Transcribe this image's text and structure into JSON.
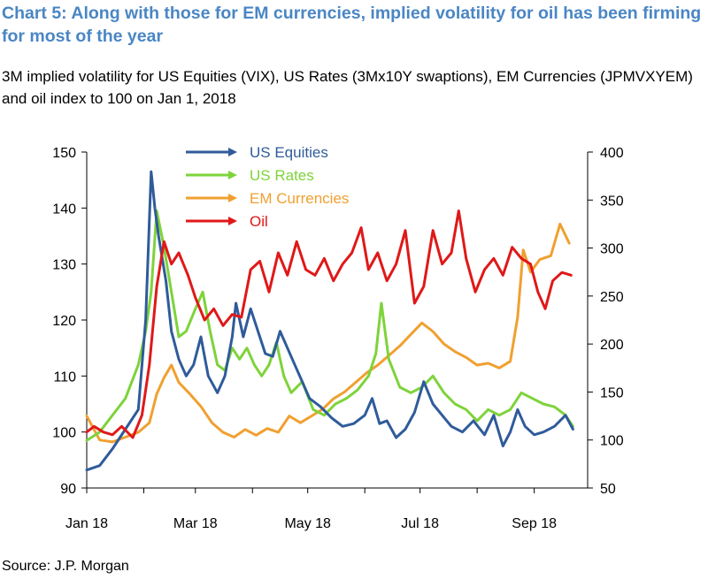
{
  "title": "Chart 5: Along with those for EM currencies, implied volatility for oil has been firming for most of the year",
  "subtitle": "3M implied volatility for US Equities (VIX), US Rates (3Mx10Y swaptions), EM Currencies (JPMVXYEM) and oil index to 100 on Jan 1, 2018",
  "source": "Source: J.P. Morgan",
  "chart_data": {
    "type": "line",
    "x_start": "2018-01-01",
    "x_end": "2018-09-30",
    "x_ticks": [
      {
        "label": "Jan 18",
        "date": "2018-01-01"
      },
      {
        "label": "Mar 18",
        "date": "2018-03-01"
      },
      {
        "label": "May 18",
        "date": "2018-05-01"
      },
      {
        "label": "Jul 18",
        "date": "2018-07-01"
      },
      {
        "label": "Sep 18",
        "date": "2018-09-01"
      }
    ],
    "y_left": {
      "min": 90,
      "max": 150,
      "ticks": [
        90,
        100,
        110,
        120,
        130,
        140,
        150
      ]
    },
    "y_right": {
      "min": 50,
      "max": 400,
      "ticks": [
        50,
        100,
        150,
        200,
        250,
        300,
        350,
        400
      ]
    },
    "legend_position": "top-left",
    "grid": false,
    "series": [
      {
        "name": "US Equities",
        "axis": "left",
        "color": "#2f5b9a",
        "points": [
          [
            "2018-01-01",
            93.2
          ],
          [
            "2018-01-08",
            94.0
          ],
          [
            "2018-01-15",
            97.0
          ],
          [
            "2018-01-22",
            100.5
          ],
          [
            "2018-01-29",
            104.0
          ],
          [
            "2018-02-02",
            120.0
          ],
          [
            "2018-02-05",
            146.5
          ],
          [
            "2018-02-07",
            140.0
          ],
          [
            "2018-02-09",
            135.0
          ],
          [
            "2018-02-13",
            127.0
          ],
          [
            "2018-02-16",
            118.0
          ],
          [
            "2018-02-20",
            113.0
          ],
          [
            "2018-02-24",
            110.0
          ],
          [
            "2018-02-28",
            112.0
          ],
          [
            "2018-03-04",
            117.0
          ],
          [
            "2018-03-08",
            110.0
          ],
          [
            "2018-03-13",
            107.0
          ],
          [
            "2018-03-17",
            110.0
          ],
          [
            "2018-03-21",
            117.0
          ],
          [
            "2018-03-23",
            123.0
          ],
          [
            "2018-03-27",
            117.0
          ],
          [
            "2018-03-31",
            122.0
          ],
          [
            "2018-04-04",
            118.0
          ],
          [
            "2018-04-08",
            114.0
          ],
          [
            "2018-04-12",
            113.5
          ],
          [
            "2018-04-16",
            118.0
          ],
          [
            "2018-04-20",
            115.0
          ],
          [
            "2018-04-24",
            112.0
          ],
          [
            "2018-04-28",
            109.0
          ],
          [
            "2018-05-02",
            106.0
          ],
          [
            "2018-05-08",
            104.5
          ],
          [
            "2018-05-14",
            102.5
          ],
          [
            "2018-05-20",
            101.0
          ],
          [
            "2018-05-26",
            101.5
          ],
          [
            "2018-06-01",
            103.0
          ],
          [
            "2018-06-05",
            106.0
          ],
          [
            "2018-06-09",
            101.5
          ],
          [
            "2018-06-13",
            102.0
          ],
          [
            "2018-06-18",
            99.0
          ],
          [
            "2018-06-23",
            100.5
          ],
          [
            "2018-06-28",
            103.5
          ],
          [
            "2018-07-03",
            109.0
          ],
          [
            "2018-07-08",
            105.0
          ],
          [
            "2018-07-13",
            103.0
          ],
          [
            "2018-07-18",
            101.0
          ],
          [
            "2018-07-24",
            100.0
          ],
          [
            "2018-07-30",
            102.0
          ],
          [
            "2018-08-05",
            99.5
          ],
          [
            "2018-08-10",
            103.0
          ],
          [
            "2018-08-15",
            97.5
          ],
          [
            "2018-08-19",
            100.0
          ],
          [
            "2018-08-23",
            104.0
          ],
          [
            "2018-08-27",
            101.0
          ],
          [
            "2018-09-01",
            99.5
          ],
          [
            "2018-09-06",
            100.0
          ],
          [
            "2018-09-12",
            101.0
          ],
          [
            "2018-09-18",
            103.0
          ],
          [
            "2018-09-22",
            100.5
          ]
        ]
      },
      {
        "name": "US Rates",
        "axis": "left",
        "color": "#7ed33a",
        "points": [
          [
            "2018-01-01",
            98.5
          ],
          [
            "2018-01-08",
            100.0
          ],
          [
            "2018-01-15",
            103.0
          ],
          [
            "2018-01-22",
            106.0
          ],
          [
            "2018-01-29",
            112.0
          ],
          [
            "2018-02-02",
            118.0
          ],
          [
            "2018-02-05",
            125.0
          ],
          [
            "2018-02-08",
            139.5
          ],
          [
            "2018-02-12",
            133.0
          ],
          [
            "2018-02-16",
            125.0
          ],
          [
            "2018-02-20",
            117.0
          ],
          [
            "2018-02-24",
            118.0
          ],
          [
            "2018-03-01",
            122.0
          ],
          [
            "2018-03-05",
            125.0
          ],
          [
            "2018-03-09",
            118.0
          ],
          [
            "2018-03-13",
            112.0
          ],
          [
            "2018-03-17",
            111.0
          ],
          [
            "2018-03-21",
            115.0
          ],
          [
            "2018-03-25",
            113.0
          ],
          [
            "2018-03-29",
            115.0
          ],
          [
            "2018-04-02",
            112.0
          ],
          [
            "2018-04-06",
            110.0
          ],
          [
            "2018-04-10",
            112.0
          ],
          [
            "2018-04-14",
            116.0
          ],
          [
            "2018-04-18",
            110.0
          ],
          [
            "2018-04-22",
            107.0
          ],
          [
            "2018-04-28",
            109.0
          ],
          [
            "2018-05-04",
            104.0
          ],
          [
            "2018-05-10",
            103.0
          ],
          [
            "2018-05-16",
            105.0
          ],
          [
            "2018-05-22",
            106.0
          ],
          [
            "2018-05-28",
            107.5
          ],
          [
            "2018-06-03",
            110.0
          ],
          [
            "2018-06-07",
            114.0
          ],
          [
            "2018-06-10",
            123.0
          ],
          [
            "2018-06-14",
            113.0
          ],
          [
            "2018-06-20",
            108.0
          ],
          [
            "2018-06-26",
            107.0
          ],
          [
            "2018-07-02",
            108.0
          ],
          [
            "2018-07-08",
            110.0
          ],
          [
            "2018-07-14",
            107.0
          ],
          [
            "2018-07-20",
            105.0
          ],
          [
            "2018-07-26",
            104.0
          ],
          [
            "2018-08-01",
            102.0
          ],
          [
            "2018-08-07",
            104.0
          ],
          [
            "2018-08-13",
            103.0
          ],
          [
            "2018-08-19",
            104.0
          ],
          [
            "2018-08-25",
            107.0
          ],
          [
            "2018-08-31",
            106.0
          ],
          [
            "2018-09-06",
            105.0
          ],
          [
            "2018-09-12",
            104.5
          ],
          [
            "2018-09-18",
            103.0
          ],
          [
            "2018-09-22",
            101.0
          ]
        ]
      },
      {
        "name": "EM Currencies",
        "axis": "right",
        "color": "#f0a030",
        "points": [
          [
            "2018-01-01",
            125
          ],
          [
            "2018-01-08",
            100
          ],
          [
            "2018-01-15",
            98
          ],
          [
            "2018-01-22",
            103
          ],
          [
            "2018-01-29",
            108
          ],
          [
            "2018-02-04",
            118
          ],
          [
            "2018-02-08",
            148
          ],
          [
            "2018-02-12",
            165
          ],
          [
            "2018-02-16",
            178
          ],
          [
            "2018-02-20",
            160
          ],
          [
            "2018-02-26",
            148
          ],
          [
            "2018-03-04",
            135
          ],
          [
            "2018-03-10",
            118
          ],
          [
            "2018-03-16",
            108
          ],
          [
            "2018-03-22",
            103
          ],
          [
            "2018-03-28",
            111
          ],
          [
            "2018-04-03",
            105
          ],
          [
            "2018-04-09",
            112
          ],
          [
            "2018-04-15",
            108
          ],
          [
            "2018-04-21",
            125
          ],
          [
            "2018-04-27",
            118
          ],
          [
            "2018-05-03",
            125
          ],
          [
            "2018-05-09",
            132
          ],
          [
            "2018-05-15",
            143
          ],
          [
            "2018-05-21",
            150
          ],
          [
            "2018-05-27",
            160
          ],
          [
            "2018-06-02",
            170
          ],
          [
            "2018-06-08",
            178
          ],
          [
            "2018-06-14",
            188
          ],
          [
            "2018-06-20",
            198
          ],
          [
            "2018-06-26",
            210
          ],
          [
            "2018-07-02",
            222
          ],
          [
            "2018-07-08",
            213
          ],
          [
            "2018-07-14",
            200
          ],
          [
            "2018-07-20",
            192
          ],
          [
            "2018-07-26",
            186
          ],
          [
            "2018-08-01",
            178
          ],
          [
            "2018-08-07",
            180
          ],
          [
            "2018-08-13",
            175
          ],
          [
            "2018-08-19",
            182
          ],
          [
            "2018-08-23",
            228
          ],
          [
            "2018-08-26",
            298
          ],
          [
            "2018-08-30",
            275
          ],
          [
            "2018-09-04",
            288
          ],
          [
            "2018-09-10",
            292
          ],
          [
            "2018-09-15",
            325
          ],
          [
            "2018-09-20",
            305
          ]
        ]
      },
      {
        "name": "Oil",
        "axis": "left",
        "color": "#e01818",
        "points": [
          [
            "2018-01-01",
            100.0
          ],
          [
            "2018-01-05",
            101.0
          ],
          [
            "2018-01-10",
            100.0
          ],
          [
            "2018-01-15",
            99.5
          ],
          [
            "2018-01-20",
            101.0
          ],
          [
            "2018-01-26",
            99.0
          ],
          [
            "2018-01-31",
            103.0
          ],
          [
            "2018-02-04",
            112.0
          ],
          [
            "2018-02-08",
            126.0
          ],
          [
            "2018-02-12",
            134.0
          ],
          [
            "2018-02-16",
            130.0
          ],
          [
            "2018-02-20",
            132.0
          ],
          [
            "2018-02-25",
            128.0
          ],
          [
            "2018-03-01",
            124.0
          ],
          [
            "2018-03-06",
            120.0
          ],
          [
            "2018-03-11",
            122.0
          ],
          [
            "2018-03-16",
            119.0
          ],
          [
            "2018-03-21",
            121.0
          ],
          [
            "2018-03-26",
            120.5
          ],
          [
            "2018-03-31",
            129.0
          ],
          [
            "2018-04-05",
            130.5
          ],
          [
            "2018-04-10",
            125.0
          ],
          [
            "2018-04-15",
            132.0
          ],
          [
            "2018-04-20",
            128.0
          ],
          [
            "2018-04-25",
            134.0
          ],
          [
            "2018-04-30",
            129.0
          ],
          [
            "2018-05-05",
            128.0
          ],
          [
            "2018-05-10",
            131.0
          ],
          [
            "2018-05-15",
            127.0
          ],
          [
            "2018-05-20",
            130.0
          ],
          [
            "2018-05-25",
            132.0
          ],
          [
            "2018-05-30",
            136.5
          ],
          [
            "2018-06-03",
            129.0
          ],
          [
            "2018-06-08",
            132.0
          ],
          [
            "2018-06-13",
            127.0
          ],
          [
            "2018-06-18",
            130.0
          ],
          [
            "2018-06-23",
            136.0
          ],
          [
            "2018-06-28",
            123.0
          ],
          [
            "2018-07-03",
            126.0
          ],
          [
            "2018-07-08",
            136.0
          ],
          [
            "2018-07-13",
            130.0
          ],
          [
            "2018-07-18",
            132.0
          ],
          [
            "2018-07-22",
            139.5
          ],
          [
            "2018-07-26",
            131.0
          ],
          [
            "2018-07-31",
            125.0
          ],
          [
            "2018-08-05",
            129.0
          ],
          [
            "2018-08-10",
            131.0
          ],
          [
            "2018-08-15",
            128.0
          ],
          [
            "2018-08-20",
            133.0
          ],
          [
            "2018-08-25",
            131.0
          ],
          [
            "2018-08-30",
            130.0
          ],
          [
            "2018-09-03",
            125.0
          ],
          [
            "2018-09-07",
            122.0
          ],
          [
            "2018-09-11",
            127.0
          ],
          [
            "2018-09-16",
            128.5
          ],
          [
            "2018-09-21",
            128.0
          ]
        ]
      }
    ]
  }
}
